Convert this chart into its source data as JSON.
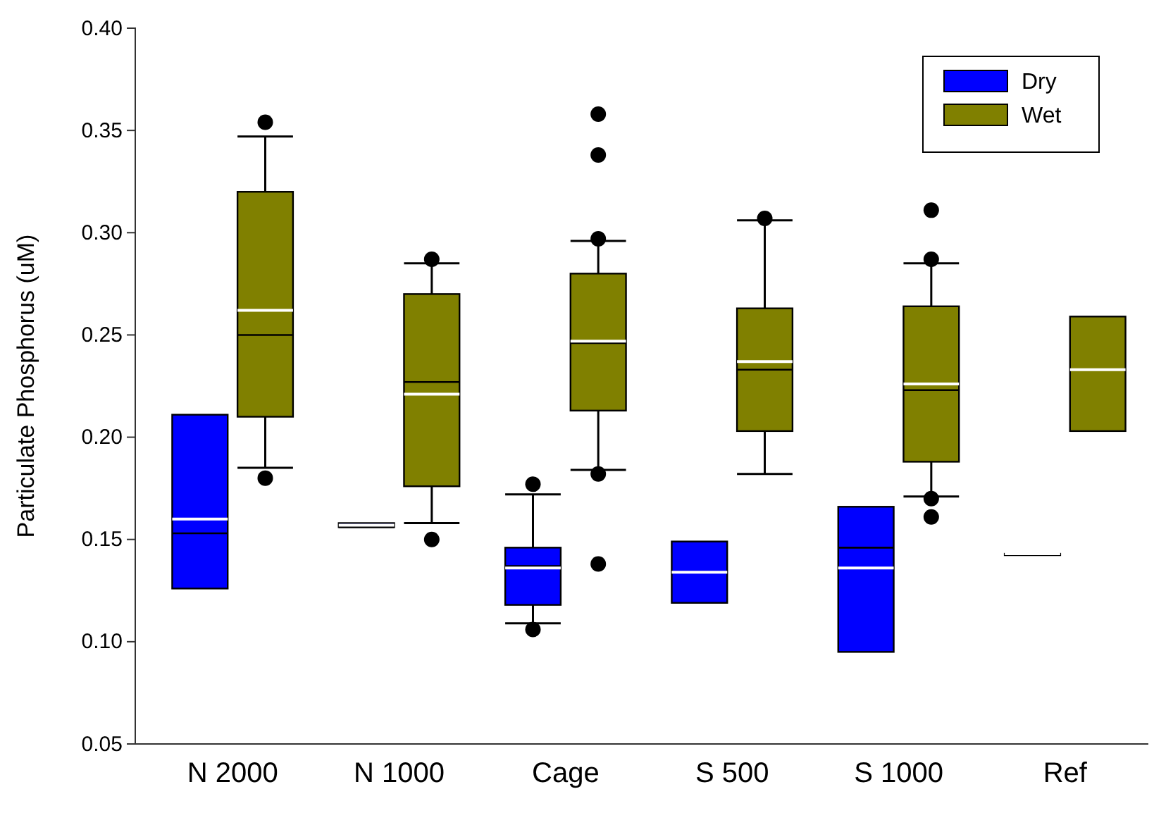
{
  "chart_data": {
    "type": "box",
    "ylabel": "Particulate Phosphorus (uM)",
    "categories": [
      "N 2000",
      "N 1000",
      "Cage",
      "S 500",
      "S 1000",
      "Ref"
    ],
    "series": [
      {
        "name": "Dry",
        "color": "#0000ff",
        "boxes": [
          {
            "low": 0.126,
            "q1": 0.126,
            "median": 0.153,
            "q3": 0.211,
            "high": 0.211,
            "mean": 0.16
          },
          {
            "low": 0.156,
            "q1": 0.156,
            "median": 0.156,
            "q3": 0.158,
            "high": 0.158,
            "mean": 0.157
          },
          {
            "low": 0.109,
            "q1": 0.118,
            "median": 0.137,
            "q3": 0.146,
            "high": 0.172,
            "mean": 0.136,
            "outliers": [
              0.177,
              0.106
            ]
          },
          {
            "low": 0.119,
            "q1": 0.119,
            "median": 0.134,
            "q3": 0.149,
            "high": 0.149,
            "mean": 0.134
          },
          {
            "low": 0.095,
            "q1": 0.095,
            "median": 0.146,
            "q3": 0.166,
            "high": 0.166,
            "mean": 0.136
          },
          {
            "low": 0.143,
            "q1": 0.143,
            "median": 0.143,
            "q3": 0.143,
            "high": 0.143,
            "mean": 0.143
          }
        ]
      },
      {
        "name": "Wet",
        "color": "#808000",
        "boxes": [
          {
            "low": 0.185,
            "q1": 0.21,
            "median": 0.25,
            "q3": 0.32,
            "high": 0.347,
            "mean": 0.262,
            "outliers": [
              0.354,
              0.18
            ]
          },
          {
            "low": 0.158,
            "q1": 0.176,
            "median": 0.227,
            "q3": 0.27,
            "high": 0.285,
            "mean": 0.221,
            "outliers": [
              0.287,
              0.15
            ]
          },
          {
            "low": 0.184,
            "q1": 0.213,
            "median": 0.246,
            "q3": 0.28,
            "high": 0.296,
            "mean": 0.247,
            "outliers": [
              0.358,
              0.338,
              0.297,
              0.182,
              0.138
            ]
          },
          {
            "low": 0.182,
            "q1": 0.203,
            "median": 0.233,
            "q3": 0.263,
            "high": 0.306,
            "mean": 0.237,
            "outliers": [
              0.307
            ]
          },
          {
            "low": 0.171,
            "q1": 0.188,
            "median": 0.223,
            "q3": 0.264,
            "high": 0.285,
            "mean": 0.226,
            "outliers": [
              0.311,
              0.287,
              0.17,
              0.161
            ]
          },
          {
            "low": 0.203,
            "q1": 0.203,
            "median": 0.233,
            "q3": 0.259,
            "high": 0.259,
            "mean": 0.233
          }
        ]
      }
    ],
    "ylim": [
      0.05,
      0.4
    ],
    "yticks": [
      {
        "value": 0.05,
        "label": "0.05"
      },
      {
        "value": 0.1,
        "label": "0.10"
      },
      {
        "value": 0.15,
        "label": "0.15"
      },
      {
        "value": 0.2,
        "label": "0.20"
      },
      {
        "value": 0.25,
        "label": "0.25"
      },
      {
        "value": 0.3,
        "label": "0.30"
      },
      {
        "value": 0.35,
        "label": "0.35"
      },
      {
        "value": 0.4,
        "label": "0.40"
      }
    ],
    "legend": "top right"
  }
}
